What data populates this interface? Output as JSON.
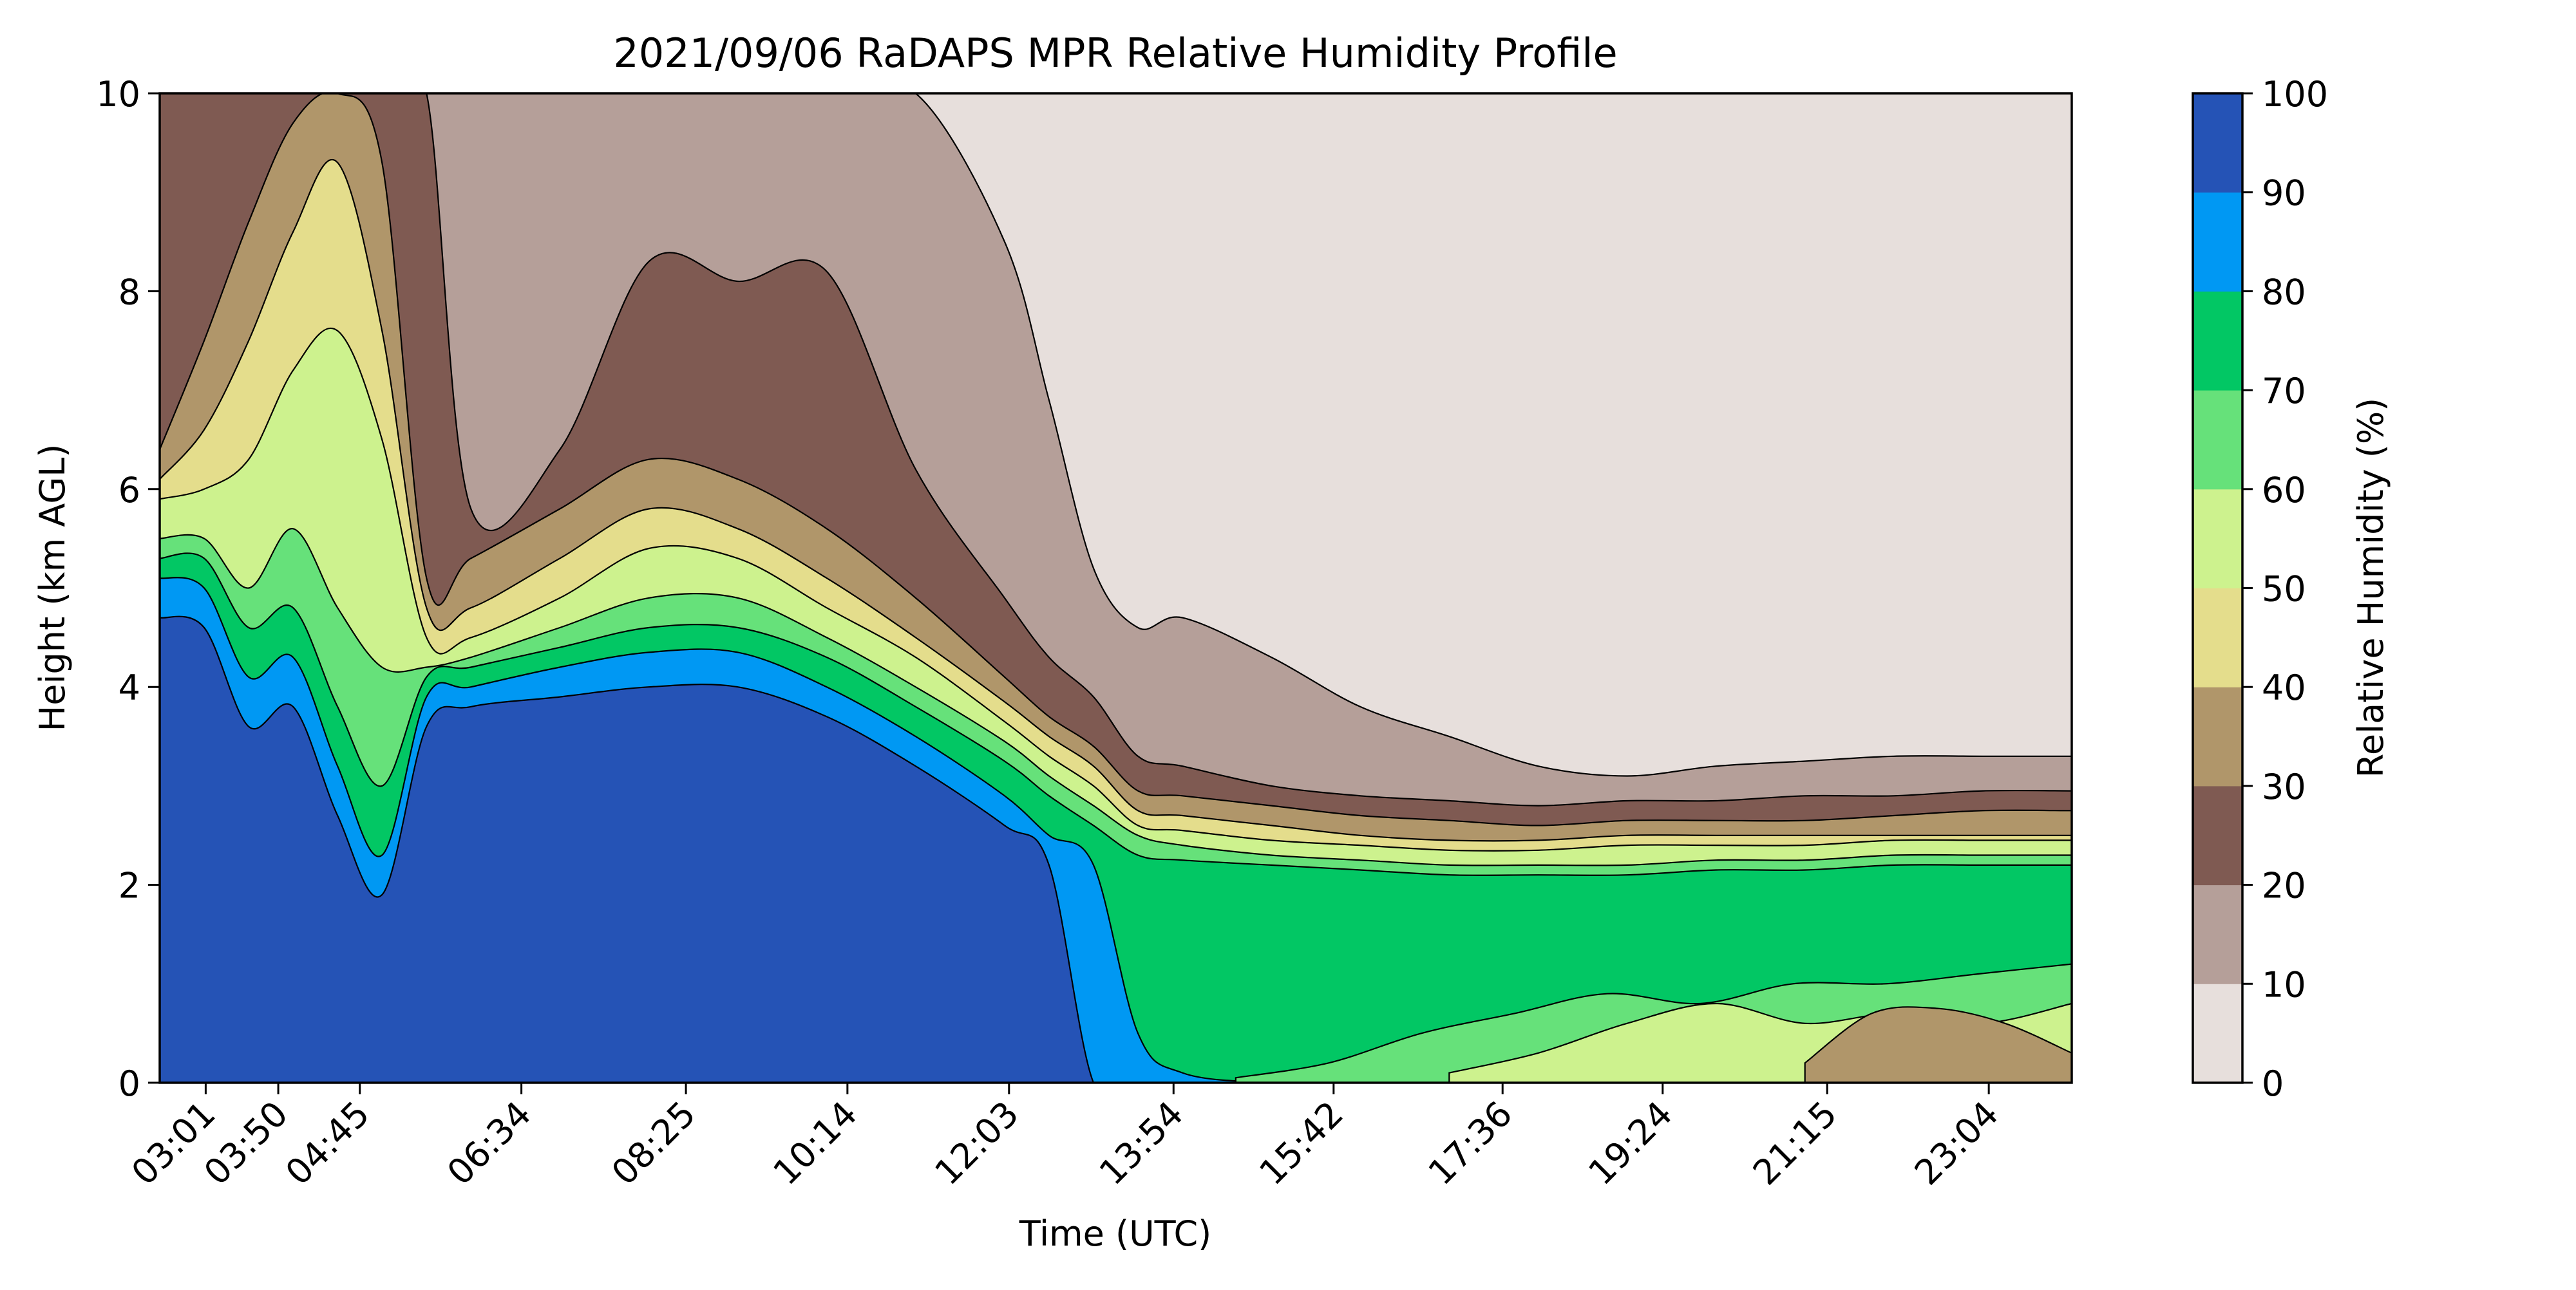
{
  "chart_data": {
    "type": "contourf",
    "title": "2021/09/06 RaDAPS MPR Relative Humidity Profile",
    "xlabel": "Time (UTC)",
    "ylabel": "Height (km AGL)",
    "x_tick_labels": [
      "03:01",
      "03:50",
      "04:45",
      "06:34",
      "08:25",
      "10:14",
      "12:03",
      "13:54",
      "15:42",
      "17:36",
      "19:24",
      "21:15",
      "23:04"
    ],
    "x_tick_hours": [
      3.017,
      3.833,
      4.75,
      6.567,
      8.417,
      10.233,
      12.05,
      13.9,
      15.7,
      17.6,
      19.4,
      21.25,
      23.067
    ],
    "xlim_hours": [
      2.5,
      24.0
    ],
    "ylim": [
      0,
      10
    ],
    "y_ticks": [
      0,
      2,
      4,
      6,
      8,
      10
    ],
    "colorbar": {
      "label": "Relative Humidity (%)",
      "levels": [
        0,
        10,
        20,
        30,
        40,
        50,
        60,
        70,
        80,
        90,
        100
      ],
      "colors": [
        "#e7dfdc",
        "#b59f99",
        "#7f5a52",
        "#b0966a",
        "#e4dd8c",
        "#cdf28e",
        "#66e17a",
        "#02c764",
        "#0098f3",
        "#2553b6"
      ]
    },
    "contour_boundaries_km": {
      "hours": [
        2.5,
        3.0,
        3.5,
        4.0,
        4.5,
        5.0,
        5.5,
        6.0,
        7.0,
        8.0,
        9.0,
        10.0,
        11.0,
        12.0,
        12.5,
        13.0,
        13.5,
        14.0,
        15.0,
        16.0,
        17.0,
        18.0,
        19.0,
        20.0,
        21.0,
        22.0,
        23.0,
        24.0
      ],
      "rh_90": [
        4.7,
        4.6,
        3.6,
        3.8,
        2.7,
        1.9,
        3.6,
        3.8,
        3.9,
        4.0,
        4.0,
        3.7,
        3.2,
        2.6,
        2.2,
        0.0,
        0.0,
        0.0,
        0.0,
        0.0,
        0.0,
        0.0,
        0.0,
        0.0,
        0.0,
        0.0,
        0.0,
        0.0
      ],
      "rh_80": [
        5.1,
        5.0,
        4.1,
        4.3,
        3.2,
        2.3,
        3.9,
        4.0,
        4.2,
        4.35,
        4.35,
        4.0,
        3.5,
        2.9,
        2.5,
        2.2,
        0.5,
        0.1,
        0.0,
        0.0,
        0.0,
        0.0,
        0.0,
        0.0,
        0.0,
        0.0,
        0.0,
        0.0
      ],
      "rh_70": [
        5.3,
        5.3,
        4.6,
        4.8,
        3.8,
        3.0,
        4.1,
        4.2,
        4.4,
        4.6,
        4.6,
        4.3,
        3.8,
        3.25,
        2.9,
        2.6,
        2.3,
        2.25,
        2.2,
        2.15,
        2.1,
        2.1,
        2.1,
        2.15,
        2.15,
        2.2,
        2.2,
        2.2
      ],
      "rh_60": [
        5.5,
        5.5,
        5.0,
        5.6,
        4.8,
        4.2,
        4.2,
        4.3,
        4.6,
        4.9,
        4.9,
        4.5,
        4.0,
        3.45,
        3.1,
        2.8,
        2.5,
        2.4,
        2.3,
        2.25,
        2.2,
        2.2,
        2.2,
        2.25,
        2.25,
        2.3,
        2.3,
        2.3
      ],
      "rh_50": [
        5.9,
        6.0,
        6.3,
        7.2,
        7.6,
        6.5,
        4.5,
        4.5,
        4.9,
        5.4,
        5.3,
        4.8,
        4.3,
        3.65,
        3.3,
        3.0,
        2.6,
        2.55,
        2.45,
        2.4,
        2.35,
        2.35,
        2.4,
        2.4,
        2.4,
        2.45,
        2.45,
        2.45
      ],
      "rh_40": [
        6.1,
        6.6,
        7.5,
        8.6,
        9.3,
        7.6,
        4.8,
        4.8,
        5.3,
        5.8,
        5.6,
        5.1,
        4.5,
        3.85,
        3.5,
        3.2,
        2.75,
        2.7,
        2.6,
        2.5,
        2.45,
        2.45,
        2.5,
        2.5,
        2.5,
        2.5,
        2.5,
        2.5
      ],
      "rh_30": [
        6.4,
        7.5,
        8.7,
        9.7,
        10.0,
        9.3,
        5.1,
        5.3,
        5.8,
        6.3,
        6.1,
        5.6,
        4.9,
        4.1,
        3.7,
        3.4,
        2.95,
        2.9,
        2.8,
        2.7,
        2.65,
        2.6,
        2.65,
        2.65,
        2.65,
        2.7,
        2.75,
        2.75
      ],
      "rh_20": [
        10.0,
        10.0,
        10.0,
        10.0,
        10.0,
        10.0,
        10.0,
        5.8,
        6.4,
        8.3,
        8.1,
        8.2,
        6.2,
        4.9,
        4.3,
        3.9,
        3.3,
        3.2,
        3.0,
        2.9,
        2.85,
        2.8,
        2.85,
        2.85,
        2.9,
        2.9,
        2.95,
        2.95
      ],
      "rh_10": [
        10.0,
        10.0,
        10.0,
        10.0,
        10.0,
        10.0,
        10.0,
        10.0,
        10.0,
        10.0,
        10.0,
        10.0,
        10.0,
        8.5,
        6.9,
        5.2,
        4.6,
        4.7,
        4.3,
        3.8,
        3.5,
        3.2,
        3.1,
        3.2,
        3.25,
        3.3,
        3.3,
        3.3
      ]
    },
    "surface_dry_patches": [
      {
        "hours_start": 14.6,
        "hours_end": 24.0,
        "top_km": [
          0.05,
          0.2,
          0.5,
          0.7,
          0.9,
          0.8,
          1.0,
          1.0,
          1.1,
          1.2
        ],
        "band": "rh_60"
      },
      {
        "hours_start": 17.0,
        "hours_end": 24.0,
        "top_km": [
          0.1,
          0.3,
          0.6,
          0.8,
          0.6,
          0.7,
          0.6,
          0.8
        ],
        "band": "rh_50"
      },
      {
        "hours_start": 21.0,
        "hours_end": 24.0,
        "top_km": [
          0.2,
          0.7,
          0.75,
          0.6,
          0.3
        ],
        "band": "rh_40"
      }
    ]
  }
}
